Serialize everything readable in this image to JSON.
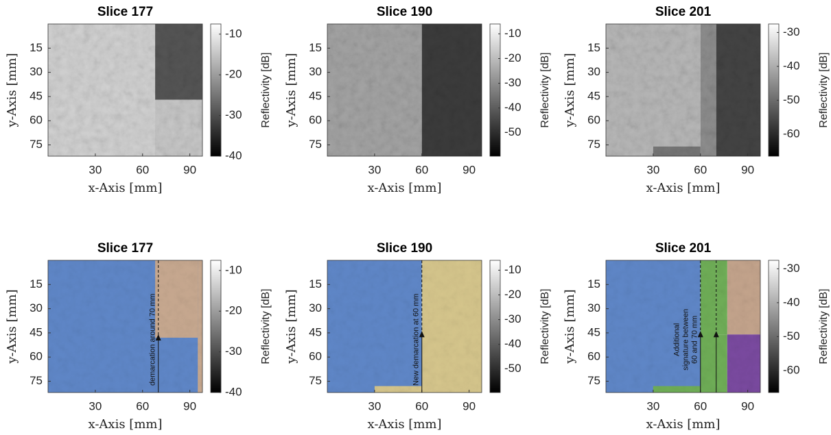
{
  "chart_data": [
    {
      "type": "image",
      "title": "Slice 177",
      "xlabel": "x-Axis [mm]",
      "ylabel": "y-Axis [mm]",
      "colorbar_label": "Reflectivity [dB]",
      "xlim": [
        0,
        98
      ],
      "ylim": [
        0,
        82
      ],
      "yreverse": true,
      "xticks": [
        30,
        60,
        90
      ],
      "yticks": [
        15,
        30,
        45,
        60,
        75
      ],
      "clim": [
        -40,
        -7.5
      ],
      "cticks": [
        -10,
        -20,
        -30,
        -40
      ]
    },
    {
      "type": "image",
      "title": "Slice 190",
      "xlabel": "x-Axis [mm]",
      "ylabel": "y-Axis [mm]",
      "colorbar_label": "Reflectivity [dB]",
      "xlim": [
        0,
        98
      ],
      "ylim": [
        0,
        82
      ],
      "yreverse": true,
      "xticks": [
        30,
        60,
        90
      ],
      "yticks": [
        15,
        30,
        45,
        60,
        75
      ],
      "clim": [
        -59.5,
        -6
      ],
      "cticks": [
        -10,
        -20,
        -30,
        -40,
        -50
      ]
    },
    {
      "type": "image",
      "title": "Slice 201",
      "xlabel": "x-Axis [mm]",
      "ylabel": "y-Axis [mm]",
      "colorbar_label": "Reflectivity [dB]",
      "xlim": [
        0,
        98
      ],
      "ylim": [
        0,
        82
      ],
      "yreverse": true,
      "xticks": [
        30,
        60,
        90
      ],
      "yticks": [
        15,
        30,
        45,
        60,
        75
      ],
      "clim": [
        -66.5,
        -27.5
      ],
      "cticks": [
        -30,
        -40,
        -50,
        -60
      ]
    },
    {
      "type": "image",
      "title": "Slice 177",
      "xlabel": "x-Axis [mm]",
      "ylabel": "y-Axis [mm]",
      "colorbar_label": "Reflectivity [dB]",
      "xlim": [
        0,
        98
      ],
      "ylim": [
        0,
        82
      ],
      "yreverse": true,
      "xticks": [
        30,
        60,
        90
      ],
      "yticks": [
        15,
        30,
        45,
        60,
        75
      ],
      "clim": [
        -40,
        -7.5
      ],
      "cticks": [
        -10,
        -20,
        -30,
        -40
      ],
      "annotation": [
        "demarcation around 70 mm"
      ]
    },
    {
      "type": "image",
      "title": "Slice 190",
      "xlabel": "x-Axis [mm]",
      "ylabel": "y-Axis [mm]",
      "colorbar_label": "Reflectivity [dB]",
      "xlim": [
        0,
        98
      ],
      "ylim": [
        0,
        82
      ],
      "yreverse": true,
      "xticks": [
        30,
        60,
        90
      ],
      "yticks": [
        15,
        30,
        45,
        60,
        75
      ],
      "clim": [
        -59.5,
        -6
      ],
      "cticks": [
        -10,
        -20,
        -30,
        -40,
        -50
      ],
      "annotation": [
        "New demarcation at 60 mm"
      ]
    },
    {
      "type": "image",
      "title": "Slice 201",
      "xlabel": "x-Axis [mm]",
      "ylabel": "y-Axis [mm]",
      "colorbar_label": "Reflectivity [dB]",
      "xlim": [
        0,
        98
      ],
      "ylim": [
        0,
        82
      ],
      "yreverse": true,
      "xticks": [
        30,
        60,
        90
      ],
      "yticks": [
        15,
        30,
        45,
        60,
        75
      ],
      "clim": [
        -66.5,
        -27.5
      ],
      "cticks": [
        -30,
        -40,
        -50,
        -60
      ],
      "annotation": [
        "Additional",
        "signature between",
        "60 and 70 mm"
      ]
    }
  ]
}
